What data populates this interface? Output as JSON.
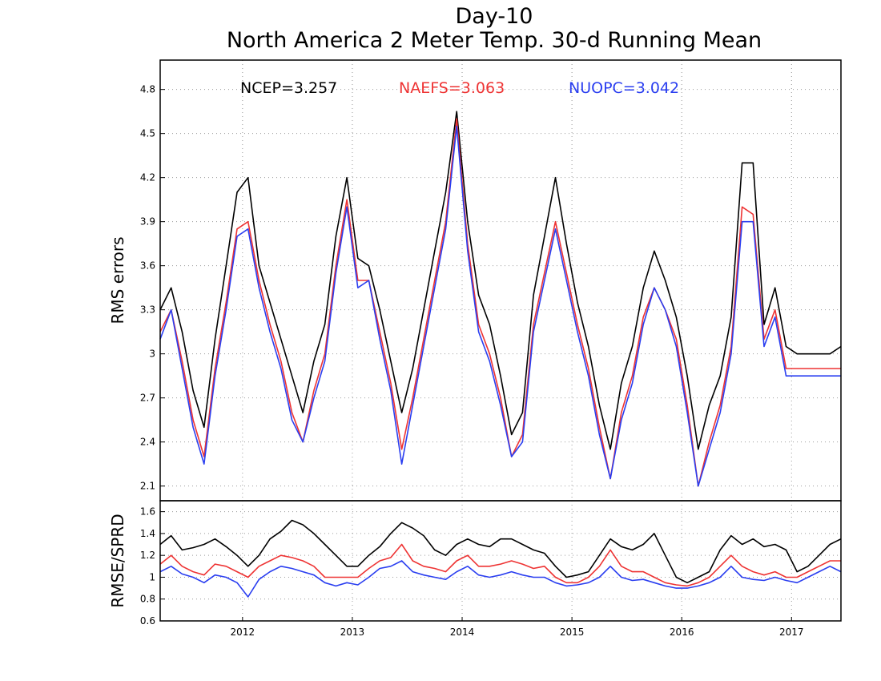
{
  "title_line1": "Day-10",
  "title_line2": "North America 2 Meter Temp. 30-d Running Mean",
  "colors": {
    "NCEP": "#000000",
    "NAEFS": "#ee3333",
    "NUOPC": "#2a3ef0"
  },
  "chart_data": [
    {
      "type": "line",
      "title": "Day-10 North America 2 Meter Temp. 30-d Running Mean",
      "xlabel": "",
      "ylabel": "RMS errors",
      "xlim": [
        2011.25,
        2017.45
      ],
      "ylim": [
        2.0,
        5.0
      ],
      "grid": true,
      "legend_position": "top",
      "x_ticks": [
        2012,
        2013,
        2014,
        2015,
        2016,
        2017
      ],
      "x_tick_labels": [
        "2012",
        "2013",
        "2014",
        "2015",
        "2016",
        "2017"
      ],
      "y_ticks": [
        2.1,
        2.4,
        2.7,
        3.0,
        3.3,
        3.6,
        3.9,
        4.2,
        4.5,
        4.8
      ],
      "y_tick_labels": [
        "2.1",
        "2.4",
        "2.7",
        "3",
        "3.3",
        "3.6",
        "3.9",
        "4.2",
        "4.5",
        "4.8"
      ],
      "legend_labels": [
        "NCEP=3.257",
        "NAEFS=3.063",
        "NUOPC=3.042"
      ],
      "x": [
        2011.25,
        2011.35,
        2011.45,
        2011.55,
        2011.65,
        2011.75,
        2011.85,
        2011.95,
        2012.05,
        2012.15,
        2012.25,
        2012.35,
        2012.45,
        2012.55,
        2012.65,
        2012.75,
        2012.85,
        2012.95,
        2013.05,
        2013.15,
        2013.25,
        2013.35,
        2013.45,
        2013.55,
        2013.65,
        2013.75,
        2013.85,
        2013.95,
        2014.05,
        2014.15,
        2014.25,
        2014.35,
        2014.45,
        2014.55,
        2014.65,
        2014.75,
        2014.85,
        2014.95,
        2015.05,
        2015.15,
        2015.25,
        2015.35,
        2015.45,
        2015.55,
        2015.65,
        2015.75,
        2015.85,
        2015.95,
        2016.05,
        2016.15,
        2016.25,
        2016.35,
        2016.45,
        2016.55,
        2016.65,
        2016.75,
        2016.85,
        2016.95,
        2017.05,
        2017.15,
        2017.25,
        2017.35,
        2017.45
      ],
      "series": [
        {
          "name": "NCEP",
          "values": [
            3.3,
            3.45,
            3.15,
            2.75,
            2.5,
            3.1,
            3.6,
            4.1,
            4.2,
            3.6,
            3.35,
            3.1,
            2.85,
            2.6,
            2.95,
            3.2,
            3.8,
            4.2,
            3.65,
            3.6,
            3.3,
            2.95,
            2.6,
            2.9,
            3.3,
            3.7,
            4.1,
            4.65,
            3.9,
            3.4,
            3.2,
            2.85,
            2.45,
            2.6,
            3.4,
            3.8,
            4.2,
            3.75,
            3.35,
            3.05,
            2.65,
            2.35,
            2.8,
            3.05,
            3.45,
            3.7,
            3.5,
            3.25,
            2.85,
            2.35,
            2.65,
            2.85,
            3.25,
            4.3,
            4.3,
            3.2,
            3.45,
            3.05,
            3.0,
            3.0,
            3.0,
            3.0,
            3.05
          ]
        },
        {
          "name": "NAEFS",
          "values": [
            3.15,
            3.3,
            2.95,
            2.55,
            2.3,
            2.9,
            3.35,
            3.85,
            3.9,
            3.5,
            3.2,
            2.95,
            2.6,
            2.4,
            2.75,
            3.0,
            3.6,
            4.05,
            3.5,
            3.5,
            3.15,
            2.8,
            2.35,
            2.7,
            3.1,
            3.5,
            3.9,
            4.6,
            3.75,
            3.2,
            3.0,
            2.7,
            2.3,
            2.45,
            3.2,
            3.55,
            3.9,
            3.55,
            3.2,
            2.9,
            2.5,
            2.15,
            2.6,
            2.85,
            3.25,
            3.45,
            3.3,
            3.1,
            2.65,
            2.1,
            2.4,
            2.65,
            3.05,
            4.0,
            3.95,
            3.1,
            3.3,
            2.9,
            2.9,
            2.9,
            2.9,
            2.9,
            2.9
          ]
        },
        {
          "name": "NUOPC",
          "values": [
            3.1,
            3.3,
            2.9,
            2.5,
            2.25,
            2.85,
            3.3,
            3.8,
            3.85,
            3.45,
            3.15,
            2.9,
            2.55,
            2.4,
            2.7,
            2.95,
            3.55,
            4.0,
            3.45,
            3.5,
            3.1,
            2.75,
            2.25,
            2.65,
            3.05,
            3.45,
            3.85,
            4.55,
            3.7,
            3.15,
            2.95,
            2.65,
            2.3,
            2.4,
            3.15,
            3.5,
            3.85,
            3.5,
            3.15,
            2.85,
            2.45,
            2.15,
            2.55,
            2.8,
            3.2,
            3.45,
            3.3,
            3.05,
            2.6,
            2.1,
            2.35,
            2.6,
            3.0,
            3.9,
            3.9,
            3.05,
            3.25,
            2.85,
            2.85,
            2.85,
            2.85,
            2.85,
            2.85
          ]
        }
      ]
    },
    {
      "type": "line",
      "title": "",
      "xlabel": "",
      "ylabel": "RMSE/SPRD",
      "xlim": [
        2011.25,
        2017.45
      ],
      "ylim": [
        0.6,
        1.7
      ],
      "grid": true,
      "x_ticks": [
        2012,
        2013,
        2014,
        2015,
        2016,
        2017
      ],
      "x_tick_labels": [
        "2012",
        "2013",
        "2014",
        "2015",
        "2016",
        "2017"
      ],
      "y_ticks": [
        0.6,
        0.8,
        1.0,
        1.2,
        1.4,
        1.6
      ],
      "y_tick_labels": [
        "0.6",
        "0.8",
        "1",
        "1.2",
        "1.4",
        "1.6"
      ],
      "x": [
        2011.25,
        2011.35,
        2011.45,
        2011.55,
        2011.65,
        2011.75,
        2011.85,
        2011.95,
        2012.05,
        2012.15,
        2012.25,
        2012.35,
        2012.45,
        2012.55,
        2012.65,
        2012.75,
        2012.85,
        2012.95,
        2013.05,
        2013.15,
        2013.25,
        2013.35,
        2013.45,
        2013.55,
        2013.65,
        2013.75,
        2013.85,
        2013.95,
        2014.05,
        2014.15,
        2014.25,
        2014.35,
        2014.45,
        2014.55,
        2014.65,
        2014.75,
        2014.85,
        2014.95,
        2015.05,
        2015.15,
        2015.25,
        2015.35,
        2015.45,
        2015.55,
        2015.65,
        2015.75,
        2015.85,
        2015.95,
        2016.05,
        2016.15,
        2016.25,
        2016.35,
        2016.45,
        2016.55,
        2016.65,
        2016.75,
        2016.85,
        2016.95,
        2017.05,
        2017.15,
        2017.25,
        2017.35,
        2017.45
      ],
      "series": [
        {
          "name": "NCEP",
          "values": [
            1.3,
            1.38,
            1.25,
            1.27,
            1.3,
            1.35,
            1.28,
            1.2,
            1.1,
            1.2,
            1.35,
            1.42,
            1.52,
            1.48,
            1.4,
            1.3,
            1.2,
            1.1,
            1.1,
            1.2,
            1.28,
            1.4,
            1.5,
            1.45,
            1.38,
            1.25,
            1.2,
            1.3,
            1.35,
            1.3,
            1.28,
            1.35,
            1.35,
            1.3,
            1.25,
            1.22,
            1.1,
            1.0,
            1.02,
            1.05,
            1.2,
            1.35,
            1.28,
            1.25,
            1.3,
            1.4,
            1.2,
            1.0,
            0.95,
            1.0,
            1.05,
            1.25,
            1.38,
            1.3,
            1.35,
            1.28,
            1.3,
            1.25,
            1.05,
            1.1,
            1.2,
            1.3,
            1.35
          ]
        },
        {
          "name": "NAEFS",
          "values": [
            1.12,
            1.2,
            1.1,
            1.05,
            1.02,
            1.12,
            1.1,
            1.05,
            1.0,
            1.1,
            1.15,
            1.2,
            1.18,
            1.15,
            1.1,
            1.0,
            1.0,
            1.0,
            1.0,
            1.08,
            1.15,
            1.18,
            1.3,
            1.15,
            1.1,
            1.08,
            1.05,
            1.15,
            1.2,
            1.1,
            1.1,
            1.12,
            1.15,
            1.12,
            1.08,
            1.1,
            1.0,
            0.95,
            0.95,
            1.0,
            1.1,
            1.25,
            1.1,
            1.05,
            1.05,
            1.0,
            0.95,
            0.93,
            0.92,
            0.95,
            1.0,
            1.1,
            1.2,
            1.1,
            1.05,
            1.02,
            1.05,
            1.0,
            1.0,
            1.05,
            1.1,
            1.15,
            1.15
          ]
        },
        {
          "name": "NUOPC",
          "values": [
            1.05,
            1.1,
            1.03,
            1.0,
            0.95,
            1.02,
            1.0,
            0.95,
            0.82,
            0.98,
            1.05,
            1.1,
            1.08,
            1.05,
            1.02,
            0.95,
            0.92,
            0.95,
            0.93,
            1.0,
            1.08,
            1.1,
            1.15,
            1.05,
            1.02,
            1.0,
            0.98,
            1.05,
            1.1,
            1.02,
            1.0,
            1.02,
            1.05,
            1.02,
            1.0,
            1.0,
            0.95,
            0.92,
            0.93,
            0.95,
            1.0,
            1.1,
            1.0,
            0.97,
            0.98,
            0.95,
            0.92,
            0.9,
            0.9,
            0.92,
            0.95,
            1.0,
            1.1,
            1.0,
            0.98,
            0.97,
            1.0,
            0.97,
            0.95,
            1.0,
            1.05,
            1.1,
            1.05
          ]
        }
      ]
    }
  ]
}
